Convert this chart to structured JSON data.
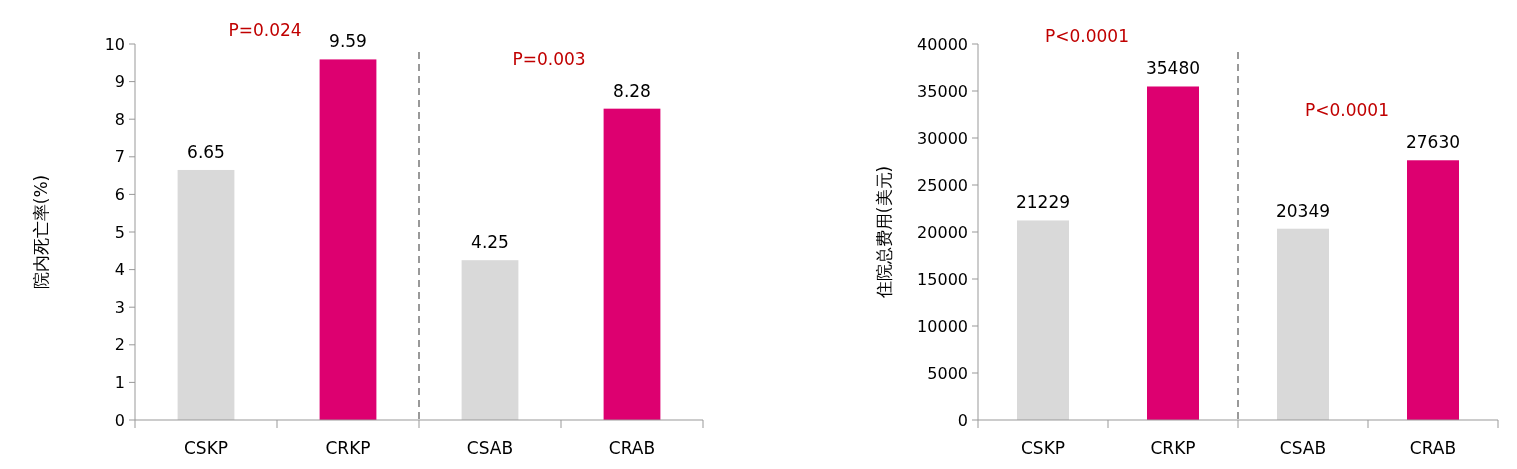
{
  "chart_data": [
    {
      "type": "bar",
      "ylabel": "院内死亡率(%)",
      "categories": [
        "CSKP",
        "CRKP",
        "CSAB",
        "CRAB"
      ],
      "values": [
        6.65,
        9.59,
        4.25,
        8.28
      ],
      "colors": [
        "#d9d9d9",
        "#dd0070",
        "#d9d9d9",
        "#dd0070"
      ],
      "ylim": [
        0,
        10
      ],
      "yticks": [
        0,
        1,
        2,
        3,
        4,
        5,
        6,
        7,
        8,
        9,
        10
      ],
      "data_labels": true,
      "annotations": [
        "P=0.024",
        "P=0.003"
      ]
    },
    {
      "type": "bar",
      "ylabel": "住院总费用(美元)",
      "categories": [
        "CSKP",
        "CRKP",
        "CSAB",
        "CRAB"
      ],
      "values": [
        21229,
        35480,
        20349,
        27630
      ],
      "colors": [
        "#d9d9d9",
        "#dd0070",
        "#d9d9d9",
        "#dd0070"
      ],
      "ylim": [
        0,
        40000
      ],
      "yticks": [
        0,
        5000,
        10000,
        15000,
        20000,
        25000,
        30000,
        35000,
        40000
      ],
      "data_labels": true,
      "annotations": [
        "P<0.0001",
        "P<0.0001"
      ]
    }
  ]
}
